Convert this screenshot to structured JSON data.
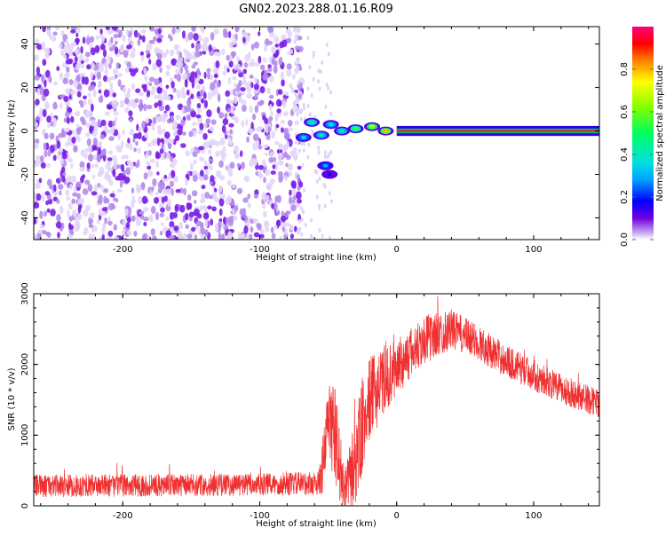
{
  "title": "GN02.2023.288.01.16.R09",
  "colors": {
    "line": "#f03030",
    "scatter_low": "#c8b0f0",
    "scatter_high": "#7000e0",
    "frame": "#000000"
  },
  "chart_data": [
    {
      "type": "heatmap",
      "title": "GN02.2023.288.01.16.R09",
      "xlabel": "Height of straight line (km)",
      "ylabel": "Frequency (Hz)",
      "xlim": [
        -265,
        148
      ],
      "ylim": [
        -50,
        48
      ],
      "xticks": [
        -200,
        -100,
        0,
        100
      ],
      "yticks": [
        -40,
        -20,
        0,
        20,
        40
      ],
      "xtick_labels": [
        "-200",
        "-100",
        "0",
        "100"
      ],
      "ytick_labels": [
        "-40",
        "-20",
        "0",
        "20",
        "40"
      ],
      "noise_region_x": [
        -265,
        -73
      ],
      "signal_line_y": 0,
      "signal_line_x": [
        0,
        148
      ],
      "features": [
        {
          "x": -68,
          "y": -3,
          "amp": 0.35
        },
        {
          "x": -62,
          "y": 4,
          "amp": 0.45
        },
        {
          "x": -55,
          "y": -2,
          "amp": 0.4
        },
        {
          "x": -48,
          "y": 3,
          "amp": 0.38
        },
        {
          "x": -40,
          "y": 0,
          "amp": 0.42
        },
        {
          "x": -30,
          "y": 1,
          "amp": 0.55
        },
        {
          "x": -18,
          "y": 2,
          "amp": 0.7
        },
        {
          "x": -8,
          "y": 0,
          "amp": 0.8
        },
        {
          "x": -52,
          "y": -16,
          "amp": 0.3
        },
        {
          "x": -49,
          "y": -20,
          "amp": 0.15
        }
      ],
      "colorbar": {
        "label": "Normalized spectral amplitude",
        "range": [
          0,
          1
        ],
        "ticks": [
          0.0,
          0.2,
          0.4,
          0.6,
          0.8
        ],
        "tick_labels": [
          "0.0",
          "0.2",
          "0.4",
          "0.6",
          "0.8"
        ]
      }
    },
    {
      "type": "line",
      "xlabel": "Height of straight line (km)",
      "ylabel": "SNR (10 * v/v)",
      "xlim": [
        -265,
        148
      ],
      "ylim": [
        0,
        3000
      ],
      "xticks": [
        -200,
        -100,
        0,
        100
      ],
      "yticks": [
        0,
        1000,
        2000,
        3000
      ],
      "xtick_labels": [
        "-200",
        "-100",
        "0",
        "100"
      ],
      "ytick_labels": [
        "0",
        "1000",
        "2000",
        "3000"
      ],
      "envelope_x": [
        -265,
        -100,
        -57,
        -53,
        -50,
        -45,
        -42,
        -38,
        -30,
        -25,
        -20,
        -10,
        0,
        20,
        40,
        60,
        80,
        100,
        120,
        148
      ],
      "envelope_y": [
        280,
        300,
        320,
        650,
        1250,
        1000,
        650,
        200,
        650,
        1100,
        1500,
        1750,
        1950,
        2350,
        2500,
        2300,
        2050,
        1850,
        1650,
        1450
      ],
      "noise_amplitude": [
        160,
        160,
        170,
        500,
        550,
        700,
        600,
        250,
        700,
        650,
        600,
        480,
        400,
        350,
        280,
        250,
        230,
        220,
        210,
        200
      ]
    }
  ]
}
